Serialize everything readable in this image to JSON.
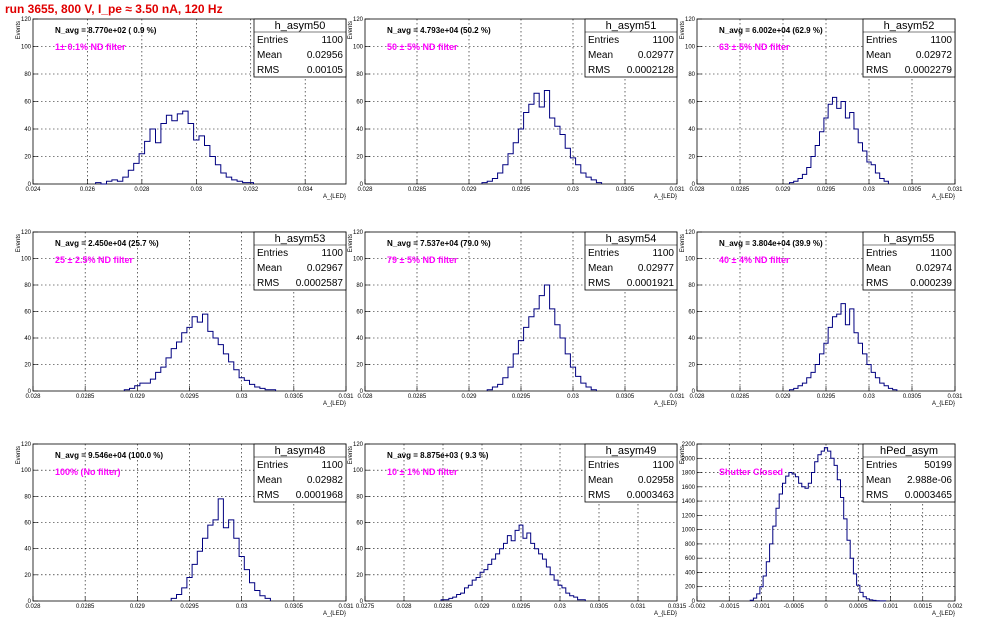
{
  "title": "run 3655,   800 V, I_pe ≈ 3.50 nA, 120 Hz",
  "colors": {
    "line": "#000080",
    "title": "#e00000",
    "filter_text": "#ff00ff",
    "grid": "#000000"
  },
  "chart_data": [
    {
      "type": "histogram",
      "name": "h_asym50",
      "entries": "1100",
      "mean": "0.02956",
      "rms": "0.00105",
      "navg": "N_avg = 8.770e+02 ( 0.9 %)",
      "filter": "1± 0.1% ND filter",
      "ylabel": "Events",
      "xlabel": "A_{LED}",
      "xlim": [
        0.024,
        0.0355
      ],
      "ylim": [
        0,
        120
      ],
      "xticks": [
        0.024,
        0.026,
        0.028,
        0.03,
        0.032,
        0.034
      ],
      "xticklabels": [
        "0.024",
        "0.026",
        "0.028",
        "0.03",
        "0.032",
        "0.034"
      ],
      "yticks": [
        0,
        20,
        40,
        60,
        80,
        100,
        120
      ],
      "x": [
        0.0264,
        0.0266,
        0.0268,
        0.027,
        0.0272,
        0.0274,
        0.0276,
        0.0278,
        0.028,
        0.0282,
        0.0284,
        0.0286,
        0.0288,
        0.029,
        0.0292,
        0.0294,
        0.0296,
        0.0298,
        0.03,
        0.0302,
        0.0304,
        0.0306,
        0.0308,
        0.031,
        0.0312,
        0.0314,
        0.0316,
        0.0318,
        0.032
      ],
      "values": [
        1,
        0,
        2,
        3,
        2,
        5,
        10,
        15,
        22,
        31,
        40,
        30,
        44,
        50,
        46,
        51,
        53,
        44,
        32,
        35,
        28,
        20,
        14,
        8,
        5,
        3,
        2,
        1,
        1
      ]
    },
    {
      "type": "histogram",
      "name": "h_asym51",
      "entries": "1100",
      "mean": "0.02977",
      "rms": "0.0002128",
      "navg": "N_avg = 4.793e+04 (50.2 %)",
      "filter": "50 ± 5% ND filter",
      "ylabel": "Events",
      "xlabel": "A_{LED}",
      "xlim": [
        0.028,
        0.031
      ],
      "ylim": [
        0,
        120
      ],
      "xticks": [
        0.028,
        0.0285,
        0.029,
        0.0295,
        0.03,
        0.0305,
        0.031
      ],
      "xticklabels": [
        "0.028",
        "0.0285",
        "0.029",
        "0.0295",
        "0.03",
        "0.0305",
        "0.031"
      ],
      "yticks": [
        0,
        20,
        40,
        60,
        80,
        100,
        120
      ],
      "x": [
        0.02915,
        0.0292,
        0.02925,
        0.0293,
        0.02935,
        0.0294,
        0.02945,
        0.0295,
        0.02955,
        0.0296,
        0.02965,
        0.0297,
        0.02975,
        0.0298,
        0.02985,
        0.0299,
        0.02995,
        0.03,
        0.03005,
        0.0301,
        0.03015,
        0.0302,
        0.03025
      ],
      "values": [
        1,
        2,
        4,
        8,
        14,
        22,
        30,
        40,
        52,
        58,
        66,
        56,
        68,
        48,
        42,
        36,
        26,
        19,
        14,
        8,
        5,
        3,
        1
      ]
    },
    {
      "type": "histogram",
      "name": "h_asym52",
      "entries": "1100",
      "mean": "0.02972",
      "rms": "0.0002279",
      "navg": "N_avg = 6.002e+04 (62.9 %)",
      "filter": "63 ± 5% ND filter",
      "ylabel": "Events",
      "xlabel": "A_{LED}",
      "xlim": [
        0.028,
        0.031
      ],
      "ylim": [
        0,
        120
      ],
      "xticks": [
        0.028,
        0.0285,
        0.029,
        0.0295,
        0.03,
        0.0305,
        0.031
      ],
      "xticklabels": [
        "0.028",
        "0.0285",
        "0.029",
        "0.0295",
        "0.03",
        "0.0305",
        "0.031"
      ],
      "yticks": [
        0,
        20,
        40,
        60,
        80,
        100,
        120
      ],
      "x": [
        0.0291,
        0.02915,
        0.0292,
        0.02925,
        0.0293,
        0.02935,
        0.0294,
        0.02945,
        0.0295,
        0.02955,
        0.0296,
        0.02965,
        0.0297,
        0.02975,
        0.0298,
        0.02985,
        0.0299,
        0.02995,
        0.03,
        0.03005,
        0.0301,
        0.03015,
        0.0302
      ],
      "values": [
        1,
        2,
        4,
        7,
        12,
        20,
        28,
        38,
        48,
        58,
        63,
        55,
        60,
        48,
        52,
        40,
        30,
        24,
        16,
        14,
        8,
        4,
        2
      ]
    },
    {
      "type": "histogram",
      "name": "h_asym53",
      "entries": "1100",
      "mean": "0.02967",
      "rms": "0.0002587",
      "navg": "N_avg = 2.450e+04 (25.7 %)",
      "filter": "25 ± 2.5% ND filter",
      "ylabel": "Events",
      "xlabel": "A_{LED}",
      "xlim": [
        0.028,
        0.031
      ],
      "ylim": [
        0,
        120
      ],
      "xticks": [
        0.028,
        0.0285,
        0.029,
        0.0295,
        0.03,
        0.0305,
        0.031
      ],
      "xticklabels": [
        "0.028",
        "0.0285",
        "0.029",
        "0.0295",
        "0.03",
        "0.0305",
        "0.031"
      ],
      "yticks": [
        0,
        20,
        40,
        60,
        80,
        100,
        120
      ],
      "x": [
        0.0289,
        0.02895,
        0.029,
        0.02905,
        0.0291,
        0.02915,
        0.0292,
        0.02925,
        0.0293,
        0.02935,
        0.0294,
        0.02945,
        0.0295,
        0.02955,
        0.0296,
        0.02965,
        0.0297,
        0.02975,
        0.0298,
        0.02985,
        0.0299,
        0.02995,
        0.03,
        0.03005,
        0.0301,
        0.03015,
        0.0302,
        0.03025,
        0.0303
      ],
      "values": [
        1,
        2,
        4,
        6,
        6,
        9,
        14,
        18,
        25,
        32,
        37,
        44,
        48,
        56,
        52,
        58,
        45,
        40,
        35,
        28,
        22,
        16,
        10,
        8,
        5,
        3,
        2,
        1,
        1
      ]
    },
    {
      "type": "histogram",
      "name": "h_asym54",
      "entries": "1100",
      "mean": "0.02977",
      "rms": "0.0001921",
      "navg": "N_avg = 7.537e+04 (79.0 %)",
      "filter": "79 ± 5% ND filter",
      "ylabel": "Events",
      "xlabel": "A_{LED}",
      "xlim": [
        0.028,
        0.031
      ],
      "ylim": [
        0,
        120
      ],
      "xticks": [
        0.028,
        0.0285,
        0.029,
        0.0295,
        0.03,
        0.0305,
        0.031
      ],
      "xticklabels": [
        "0.028",
        "0.0285",
        "0.029",
        "0.0295",
        "0.03",
        "0.0305",
        "0.031"
      ],
      "yticks": [
        0,
        20,
        40,
        60,
        80,
        100,
        120
      ],
      "x": [
        0.0292,
        0.02925,
        0.0293,
        0.02935,
        0.0294,
        0.02945,
        0.0295,
        0.02955,
        0.0296,
        0.02965,
        0.0297,
        0.02975,
        0.0298,
        0.02985,
        0.0299,
        0.02995,
        0.03,
        0.03005,
        0.0301,
        0.03015,
        0.0302
      ],
      "values": [
        1,
        3,
        5,
        10,
        18,
        28,
        38,
        48,
        56,
        62,
        72,
        80,
        62,
        50,
        40,
        28,
        18,
        11,
        6,
        3,
        1
      ]
    },
    {
      "type": "histogram",
      "name": "h_asym55",
      "entries": "1100",
      "mean": "0.02974",
      "rms": "0.000239",
      "navg": "N_avg = 3.804e+04 (39.9 %)",
      "filter": "40 ± 4% ND filter",
      "ylabel": "Events",
      "xlabel": "A_{LED}",
      "xlim": [
        0.028,
        0.031
      ],
      "ylim": [
        0,
        120
      ],
      "xticks": [
        0.028,
        0.0285,
        0.029,
        0.0295,
        0.03,
        0.0305,
        0.031
      ],
      "xticklabels": [
        "0.028",
        "0.0285",
        "0.029",
        "0.0295",
        "0.03",
        "0.0305",
        "0.031"
      ],
      "yticks": [
        0,
        20,
        40,
        60,
        80,
        100,
        120
      ],
      "x": [
        0.0291,
        0.02915,
        0.0292,
        0.02925,
        0.0293,
        0.02935,
        0.0294,
        0.02945,
        0.0295,
        0.02955,
        0.0296,
        0.02965,
        0.0297,
        0.02975,
        0.0298,
        0.02985,
        0.0299,
        0.02995,
        0.03,
        0.03005,
        0.0301,
        0.03015,
        0.0302,
        0.03025,
        0.0303
      ],
      "values": [
        1,
        2,
        4,
        6,
        10,
        14,
        20,
        28,
        36,
        48,
        56,
        58,
        66,
        50,
        62,
        44,
        36,
        28,
        20,
        14,
        10,
        6,
        4,
        2,
        1
      ]
    },
    {
      "type": "histogram",
      "name": "h_asym48",
      "entries": "1100",
      "mean": "0.02982",
      "rms": "0.0001968",
      "navg": "N_avg = 9.546e+04 (100.0 %)",
      "filter": "100% (No filter)",
      "ylabel": "Events",
      "xlabel": "A_{LED}",
      "xlim": [
        0.028,
        0.031
      ],
      "ylim": [
        0,
        120
      ],
      "xticks": [
        0.028,
        0.0285,
        0.029,
        0.0295,
        0.03,
        0.0305,
        0.031
      ],
      "xticklabels": [
        "0.028",
        "0.0285",
        "0.029",
        "0.0295",
        "0.03",
        "0.0305",
        "0.031"
      ],
      "yticks": [
        0,
        20,
        40,
        60,
        80,
        100,
        120
      ],
      "x": [
        0.02935,
        0.0294,
        0.02945,
        0.0295,
        0.02955,
        0.0296,
        0.02965,
        0.0297,
        0.02975,
        0.0298,
        0.02985,
        0.0299,
        0.02995,
        0.03,
        0.03005,
        0.0301,
        0.03015,
        0.0302,
        0.03025
      ],
      "values": [
        2,
        5,
        10,
        18,
        28,
        38,
        48,
        58,
        62,
        78,
        56,
        62,
        48,
        34,
        24,
        14,
        8,
        4,
        2
      ]
    },
    {
      "type": "histogram",
      "name": "h_asym49",
      "entries": "1100",
      "mean": "0.02958",
      "rms": "0.0003463",
      "navg": "N_avg = 8.875e+03 ( 9.3 %)",
      "filter": "10 ± 1% ND filter",
      "ylabel": "Events",
      "xlabel": "A_{LED}",
      "xlim": [
        0.0275,
        0.0315
      ],
      "ylim": [
        0,
        120
      ],
      "xticks": [
        0.0275,
        0.028,
        0.0285,
        0.029,
        0.0295,
        0.03,
        0.0305,
        0.031,
        0.0315
      ],
      "xticklabels": [
        "0.0275",
        "0.028",
        "0.0285",
        "0.029",
        "0.0295",
        "0.03",
        "0.0305",
        "0.031",
        "0.0315"
      ],
      "yticks": [
        0,
        20,
        40,
        60,
        80,
        100,
        120
      ],
      "x": [
        0.0285,
        0.02855,
        0.0286,
        0.02865,
        0.0287,
        0.02875,
        0.0288,
        0.02885,
        0.0289,
        0.02895,
        0.029,
        0.02905,
        0.0291,
        0.02915,
        0.0292,
        0.02925,
        0.0293,
        0.02935,
        0.0294,
        0.02945,
        0.0295,
        0.02955,
        0.0296,
        0.02965,
        0.0297,
        0.02975,
        0.0298,
        0.02985,
        0.0299,
        0.02995,
        0.03,
        0.03005,
        0.0301,
        0.03015,
        0.0302,
        0.03025,
        0.0303
      ],
      "values": [
        1,
        1,
        2,
        3,
        5,
        6,
        10,
        12,
        16,
        18,
        22,
        24,
        28,
        32,
        36,
        40,
        44,
        50,
        46,
        54,
        58,
        48,
        52,
        44,
        40,
        36,
        32,
        26,
        20,
        16,
        12,
        10,
        6,
        4,
        3,
        1,
        1
      ]
    },
    {
      "type": "histogram",
      "name": "hPed_asym",
      "entries": "50199",
      "mean": "2.988e-06",
      "rms": "0.0003465",
      "navg": "",
      "filter": "Shutter Closed",
      "ylabel": "Events",
      "xlabel": "A_{LED}",
      "xlim": [
        -0.002,
        0.002
      ],
      "ylim": [
        0,
        2200
      ],
      "xticks": [
        -0.002,
        -0.0015,
        -0.001,
        -0.0005,
        0,
        0.0005,
        0.001,
        0.0015,
        0.002
      ],
      "xticklabels": [
        "-0.002",
        "-0.0015",
        "-0.001",
        "-0.0005",
        "0",
        "0.0005",
        "0.001",
        "0.0015",
        "0.002"
      ],
      "yticks": [
        0,
        200,
        400,
        600,
        800,
        1000,
        1200,
        1400,
        1600,
        1800,
        2000,
        2200
      ],
      "x": [
        -0.00115,
        -0.0011,
        -0.00105,
        -0.001,
        -0.00095,
        -0.0009,
        -0.00085,
        -0.0008,
        -0.00075,
        -0.0007,
        -0.00065,
        -0.0006,
        -0.00055,
        -0.0005,
        -0.00045,
        -0.0004,
        -0.00035,
        -0.0003,
        -0.00025,
        -0.0002,
        -0.00015,
        -0.0001,
        -5e-05,
        0,
        5e-05,
        0.0001,
        0.00015,
        0.0002,
        0.00025,
        0.0003,
        0.00035,
        0.0004,
        0.00045,
        0.0005,
        0.00055,
        0.0006,
        0.00065,
        0.0007,
        0.00075,
        0.0008,
        0.00085,
        0.0009
      ],
      "values": [
        10,
        40,
        100,
        200,
        350,
        550,
        800,
        1050,
        1300,
        1500,
        1650,
        1750,
        1800,
        1780,
        1740,
        1650,
        1600,
        1580,
        1650,
        1800,
        1950,
        2050,
        2100,
        2150,
        2100,
        2000,
        1900,
        1700,
        1450,
        1150,
        850,
        600,
        380,
        220,
        120,
        60,
        30,
        15,
        8,
        4,
        2,
        1
      ]
    }
  ]
}
